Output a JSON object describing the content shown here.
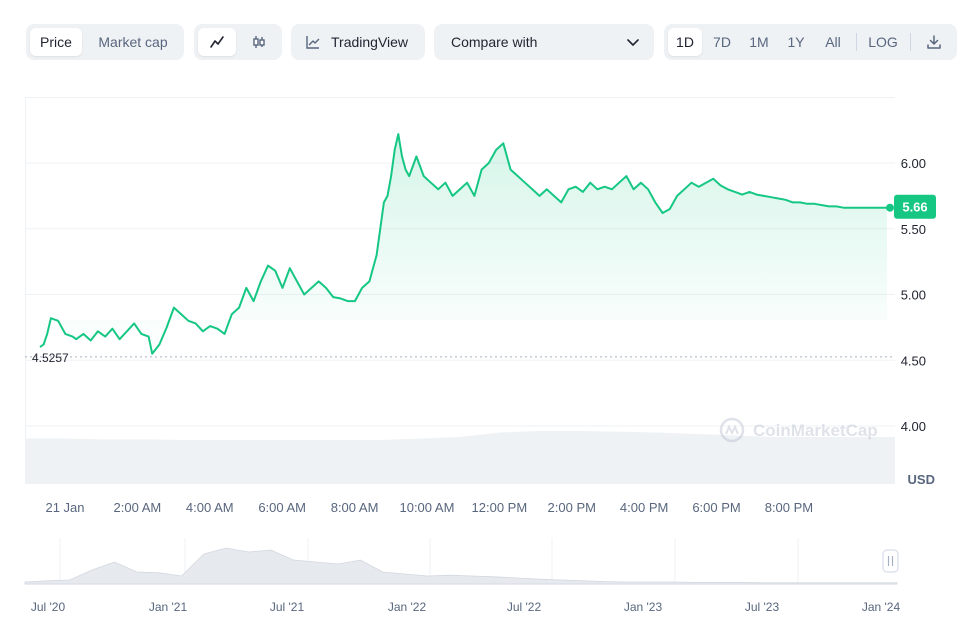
{
  "toolbar": {
    "price_label": "Price",
    "market_cap_label": "Market cap",
    "line_icon": "line-chart-icon",
    "candle_icon": "candlestick-icon",
    "tradingview_label": "TradingView",
    "compare_label": "Compare with",
    "range_options": [
      "1D",
      "7D",
      "1M",
      "1Y",
      "All"
    ],
    "active_range": "1D",
    "log_label": "LOG",
    "download_icon": "download-icon"
  },
  "colors": {
    "accent": "#16c784",
    "badge": "#16c784",
    "grid": "#eff2f5",
    "text_muted": "#58667e"
  },
  "chart_data": {
    "type": "line",
    "ylabel": "USD",
    "ylim": [
      3.55,
      6.5
    ],
    "yticks": [
      "6.00",
      "5.50",
      "5.00",
      "4.50",
      "4.00"
    ],
    "ytick_values": [
      6.0,
      5.5,
      5.0,
      4.5,
      4.0
    ],
    "current_price": "5.66",
    "current_value": 5.66,
    "open_price": "4.5257",
    "open_value": 4.5257,
    "xtick_labels": [
      "21 Jan",
      "2:00 AM",
      "4:00 AM",
      "6:00 AM",
      "8:00 AM",
      "10:00 AM",
      "12:00 PM",
      "2:00 PM",
      "4:00 PM",
      "6:00 PM",
      "8:00 PM"
    ],
    "xtick_hours": [
      0,
      2,
      4,
      6,
      8,
      10,
      12,
      14,
      16,
      18,
      20
    ],
    "series": [
      {
        "x_hours": [
          0,
          0.1,
          0.2,
          0.3,
          0.5,
          0.7,
          0.9,
          1.0,
          1.2,
          1.4,
          1.6,
          1.8,
          2.0,
          2.2,
          2.4,
          2.6,
          2.8,
          3.0,
          3.1,
          3.3,
          3.5,
          3.7,
          3.9,
          4.1,
          4.3,
          4.5,
          4.7,
          4.9,
          5.1,
          5.3,
          5.5,
          5.7,
          5.9,
          6.1,
          6.3,
          6.5,
          6.7,
          6.9,
          7.1,
          7.3,
          7.5,
          7.7,
          7.9,
          8.1,
          8.3,
          8.5,
          8.7,
          8.9,
          9.1,
          9.3,
          9.5,
          9.6,
          9.7,
          9.8,
          9.9,
          10.0,
          10.1,
          10.2,
          10.4,
          10.6,
          10.8,
          11.0,
          11.2,
          11.4,
          11.6,
          11.8,
          12.0,
          12.2,
          12.4,
          12.6,
          12.8,
          13.0,
          13.2,
          13.4,
          13.6,
          13.8,
          14.0,
          14.2,
          14.4,
          14.6,
          14.8,
          15.0,
          15.2,
          15.4,
          15.6,
          15.8,
          16.0,
          16.2,
          16.4,
          16.6,
          16.8,
          17.0,
          17.2,
          17.4,
          17.6,
          17.8,
          18.0,
          18.2,
          18.4,
          18.6,
          18.8,
          19.0,
          19.2,
          19.4,
          19.6,
          19.8,
          20.0,
          20.2,
          20.4,
          20.6,
          20.8,
          21.0,
          21.2,
          21.4,
          21.6,
          21.8,
          22.0,
          22.2,
          22.4,
          22.6,
          22.8,
          23.0,
          23.2,
          23.4
        ],
        "values": [
          4.6,
          4.62,
          4.7,
          4.82,
          4.8,
          4.7,
          4.68,
          4.66,
          4.7,
          4.65,
          4.72,
          4.68,
          4.74,
          4.66,
          4.72,
          4.78,
          4.7,
          4.68,
          4.55,
          4.62,
          4.75,
          4.9,
          4.85,
          4.8,
          4.78,
          4.72,
          4.76,
          4.74,
          4.7,
          4.85,
          4.9,
          5.05,
          4.95,
          5.1,
          5.22,
          5.18,
          5.05,
          5.2,
          5.1,
          5.0,
          5.05,
          5.1,
          5.05,
          4.98,
          4.97,
          4.95,
          4.95,
          5.05,
          5.1,
          5.3,
          5.7,
          5.75,
          5.9,
          6.1,
          6.22,
          6.05,
          5.95,
          5.9,
          6.05,
          5.9,
          5.85,
          5.8,
          5.85,
          5.75,
          5.8,
          5.85,
          5.75,
          5.95,
          6.0,
          6.1,
          6.15,
          5.95,
          5.9,
          5.85,
          5.8,
          5.75,
          5.8,
          5.75,
          5.7,
          5.8,
          5.82,
          5.78,
          5.85,
          5.8,
          5.82,
          5.8,
          5.85,
          5.9,
          5.8,
          5.85,
          5.8,
          5.7,
          5.62,
          5.65,
          5.75,
          5.8,
          5.85,
          5.82,
          5.85,
          5.88,
          5.83,
          5.8,
          5.78,
          5.76,
          5.78,
          5.76,
          5.75,
          5.74,
          5.73,
          5.72,
          5.7,
          5.7,
          5.69,
          5.69,
          5.68,
          5.67,
          5.67,
          5.66,
          5.66,
          5.66,
          5.66,
          5.66,
          5.66,
          5.66
        ]
      }
    ],
    "volume_shape": [
      0.55,
      0.55,
      0.52,
      0.52,
      0.5,
      0.5,
      0.5,
      0.5,
      0.5,
      0.5,
      0.55,
      0.6,
      0.75,
      0.8,
      0.8,
      0.78,
      0.75,
      0.7,
      0.65,
      0.6,
      0.6,
      0.6,
      0.6
    ],
    "navigator_labels": [
      "Jul '20",
      "Jan '21",
      "Jul '21",
      "Jan '22",
      "Jul '22",
      "Jan '23",
      "Jul '23",
      "Jan '24"
    ],
    "navigator_shape": [
      0.05,
      0.08,
      0.1,
      0.35,
      0.55,
      0.3,
      0.28,
      0.2,
      0.75,
      0.9,
      0.8,
      0.85,
      0.6,
      0.55,
      0.5,
      0.6,
      0.3,
      0.25,
      0.2,
      0.22,
      0.2,
      0.18,
      0.15,
      0.12,
      0.1,
      0.08,
      0.06,
      0.05,
      0.05,
      0.05,
      0.04,
      0.04,
      0.04,
      0.03,
      0.03,
      0.03,
      0.03,
      0.03,
      0.03,
      0.03
    ]
  },
  "watermark": "CoinMarketCap"
}
